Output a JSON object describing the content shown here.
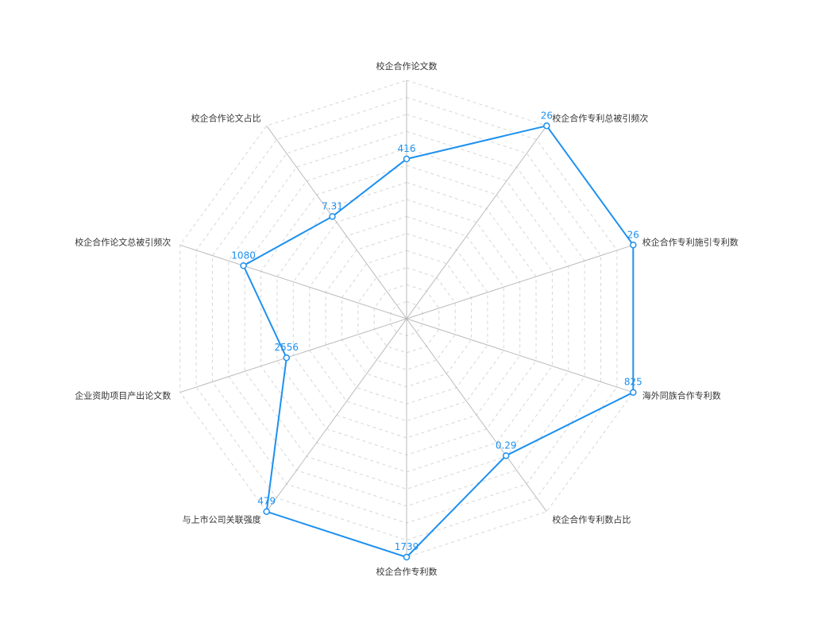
{
  "chart_data": {
    "type": "radar",
    "title": "",
    "grid": true,
    "split_count": 14,
    "indicators": [
      "校企合作论文数",
      "校企合作专利总被引频次",
      "校企合作专利施引专利数",
      "海外同族合作专利数",
      "校企合作专利数占比",
      "校企合作专利数",
      "与上市公司关联强度",
      "企业资助项目产出论文数",
      "校企合作论文总被引频次",
      "校企合作论文占比"
    ],
    "series": [
      {
        "values": [
          416,
          26,
          26,
          825,
          0.29,
          1739,
          479,
          2556,
          1080,
          7.31
        ],
        "value_labels": [
          "416",
          "26",
          "26",
          "825",
          "0.29",
          "1739",
          "479",
          "2556",
          "1080",
          "7.31"
        ],
        "ratio": [
          0.67,
          1.0,
          1.0,
          1.0,
          0.71,
          1.0,
          1.0,
          0.53,
          0.72,
          0.53
        ],
        "color": "#1e90ef"
      }
    ],
    "colors": {
      "series": "#1e90ef",
      "axis": "#bbbbbb",
      "grid": "#d6d6d6",
      "label": "#333333"
    }
  }
}
